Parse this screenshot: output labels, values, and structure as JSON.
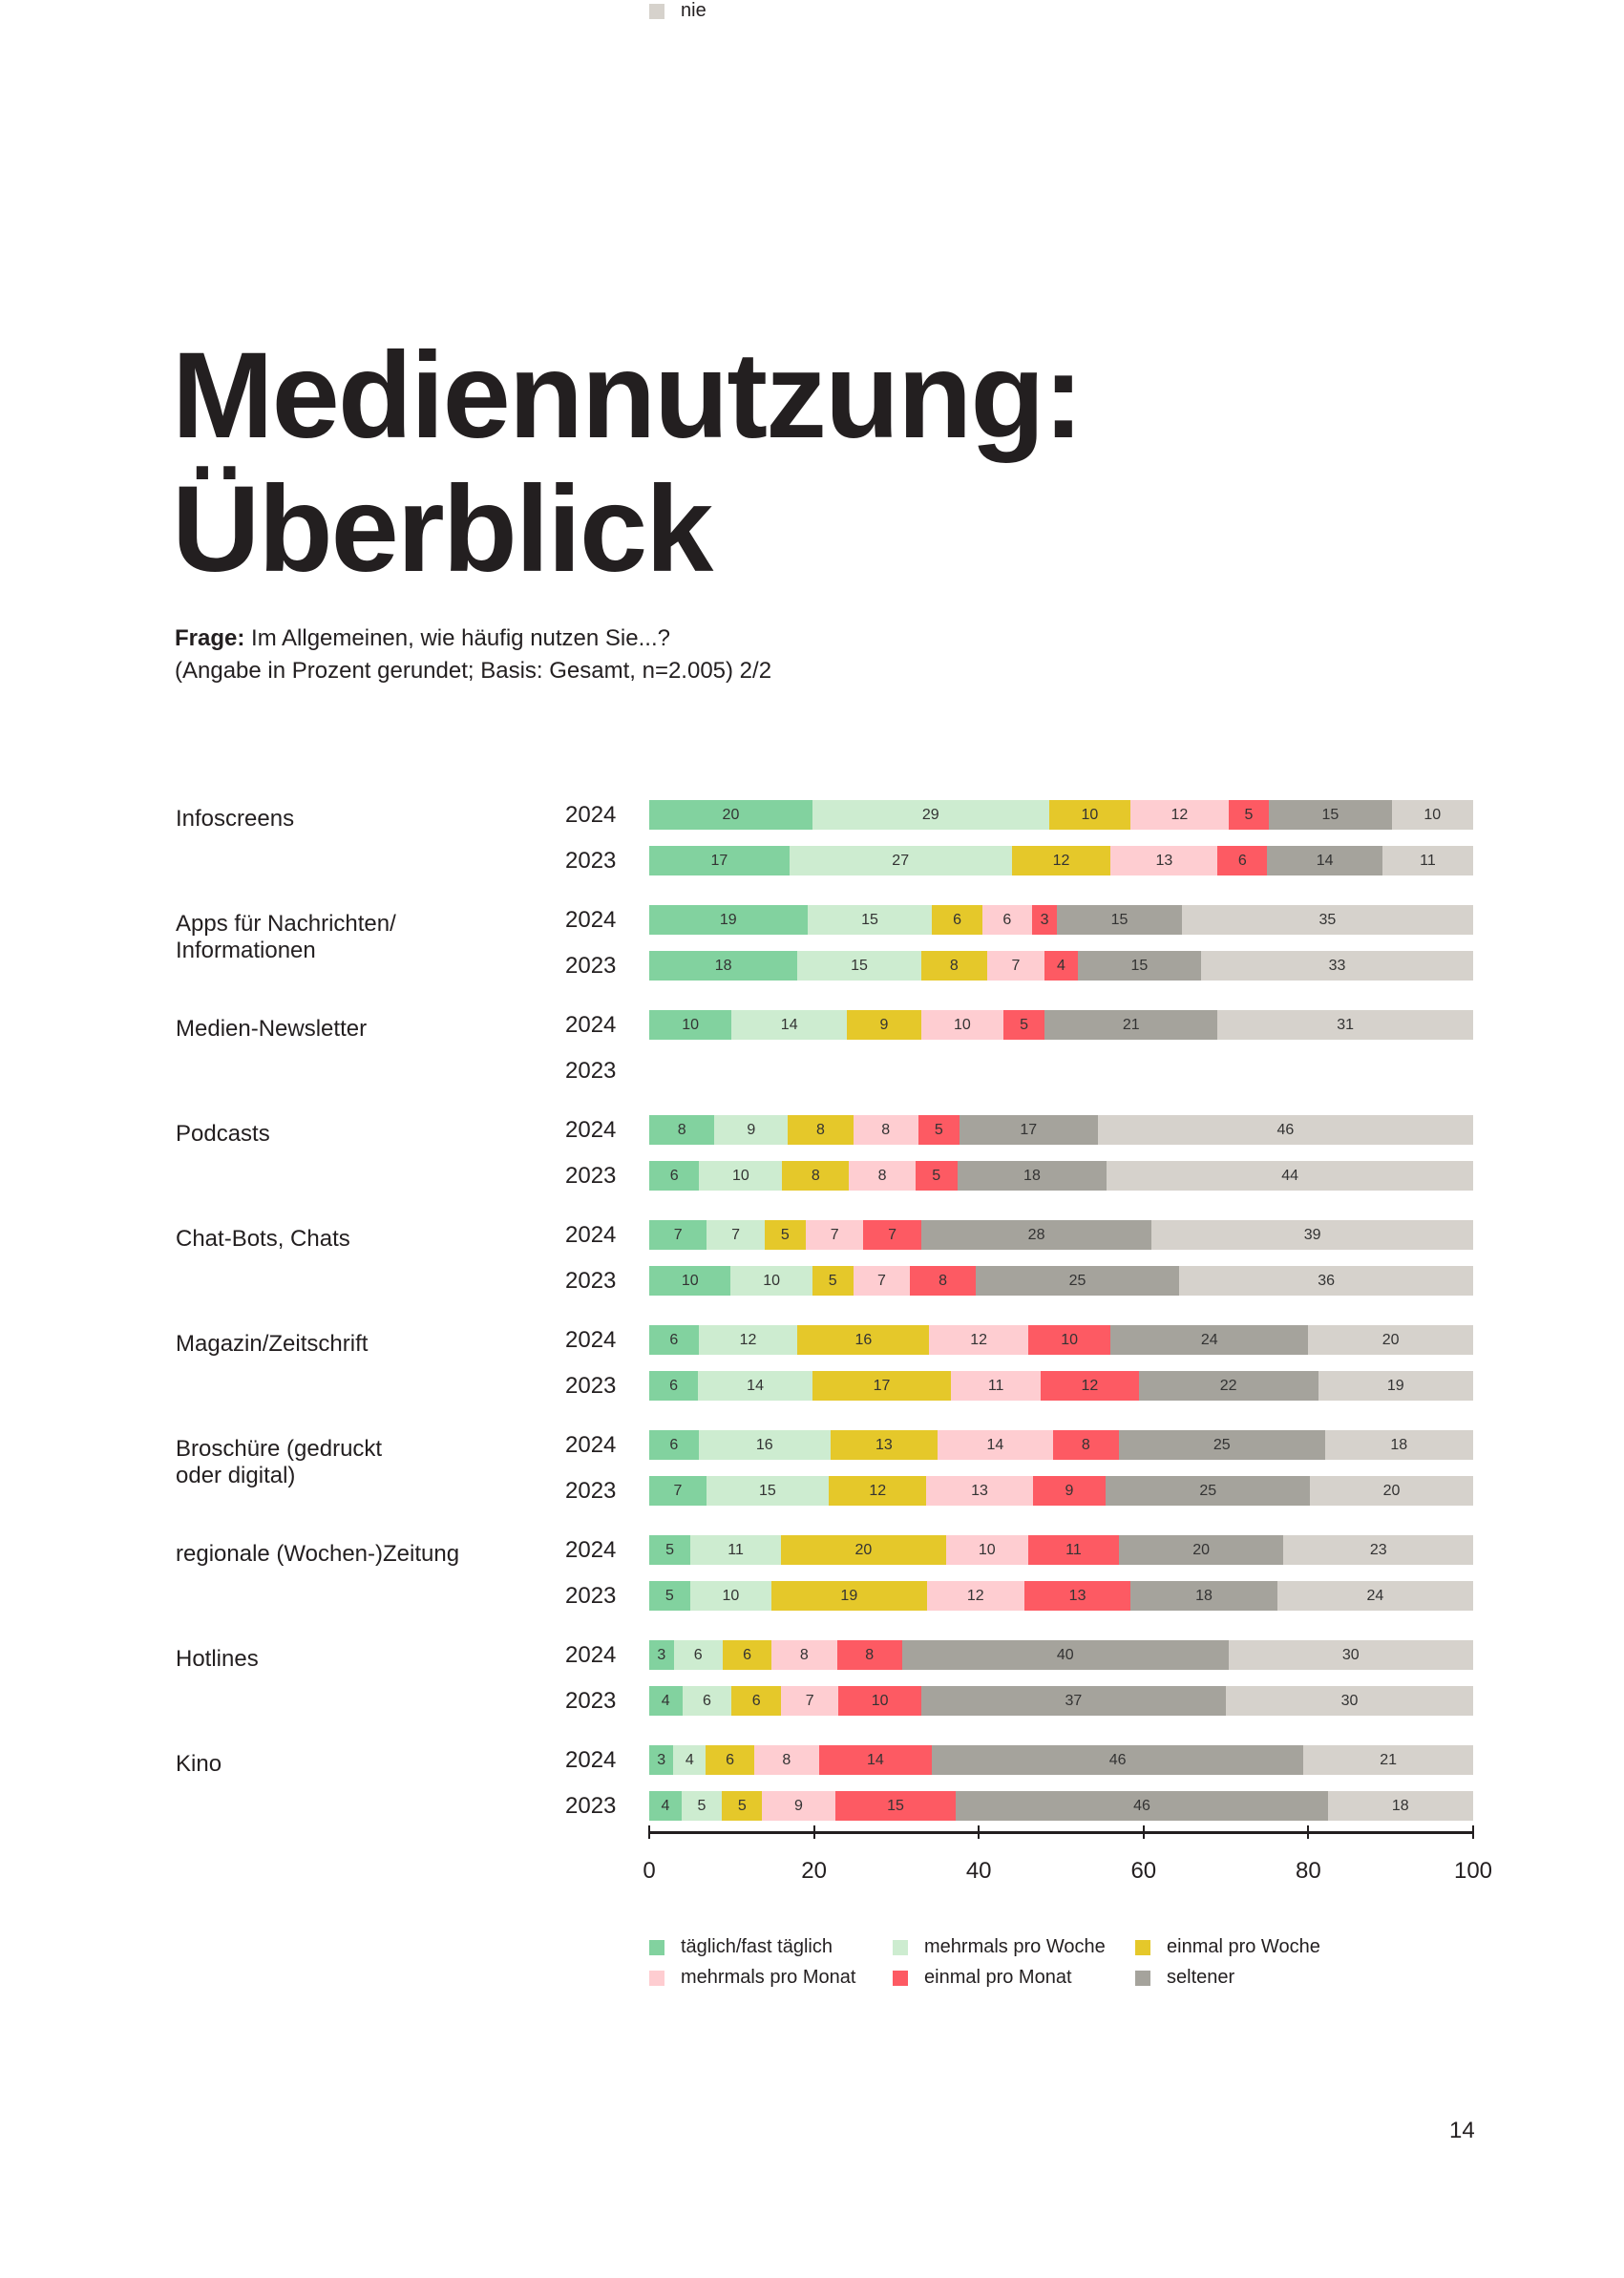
{
  "title_line1": "Mediennutzung:",
  "title_line2": "Überblick",
  "question_label": "Frage:",
  "question_text": " Im Allgemeinen, wie häufig nutzen Sie...?",
  "basis_text": "(Angabe in Prozent gerundet; Basis: Gesamt, n=2.005) 2/2",
  "page_number": "14",
  "chart_data": {
    "type": "bar",
    "stacked": true,
    "orientation": "horizontal",
    "xlim": [
      0,
      100
    ],
    "xticks": [
      "0",
      "20",
      "40",
      "60",
      "80",
      "100"
    ],
    "series_names": [
      "täglich/fast täglich",
      "mehrmals pro Woche",
      "einmal pro Woche",
      "mehrmals pro Monat",
      "einmal pro Monat",
      "seltener",
      "nie"
    ],
    "colors": [
      "#82d29f",
      "#cdecd0",
      "#e5c82a",
      "#fecdd1",
      "#fd5a63",
      "#a5a39c",
      "#d6d2cc"
    ],
    "legend_placement": "bottom",
    "categories": [
      {
        "label": "Infoscreens",
        "rows": [
          {
            "year": "2024",
            "values": [
              20,
              29,
              10,
              12,
              5,
              15,
              10
            ]
          },
          {
            "year": "2023",
            "values": [
              17,
              27,
              12,
              13,
              6,
              14,
              11
            ]
          }
        ]
      },
      {
        "label": "Apps für Nachrichten/\nInformationen",
        "rows": [
          {
            "year": "2024",
            "values": [
              19,
              15,
              6,
              6,
              3,
              15,
              35
            ]
          },
          {
            "year": "2023",
            "values": [
              18,
              15,
              8,
              7,
              4,
              15,
              33
            ]
          }
        ]
      },
      {
        "label": "Medien-Newsletter",
        "rows": [
          {
            "year": "2024",
            "values": [
              10,
              14,
              9,
              10,
              5,
              21,
              31
            ]
          },
          {
            "year": "2023",
            "values": []
          }
        ]
      },
      {
        "label": "Podcasts",
        "rows": [
          {
            "year": "2024",
            "values": [
              8,
              9,
              8,
              8,
              5,
              17,
              46
            ]
          },
          {
            "year": "2023",
            "values": [
              6,
              10,
              8,
              8,
              5,
              18,
              44
            ]
          }
        ]
      },
      {
        "label": "Chat-Bots, Chats",
        "rows": [
          {
            "year": "2024",
            "values": [
              7,
              7,
              5,
              7,
              7,
              28,
              39
            ]
          },
          {
            "year": "2023",
            "values": [
              10,
              10,
              5,
              7,
              8,
              25,
              36
            ]
          }
        ]
      },
      {
        "label": "Magazin/Zeitschrift",
        "rows": [
          {
            "year": "2024",
            "values": [
              6,
              12,
              16,
              12,
              10,
              24,
              20
            ]
          },
          {
            "year": "2023",
            "values": [
              6,
              14,
              17,
              11,
              12,
              22,
              19
            ]
          }
        ]
      },
      {
        "label": "Broschüre (gedruckt\noder digital)",
        "rows": [
          {
            "year": "2024",
            "values": [
              6,
              16,
              13,
              14,
              8,
              25,
              18
            ]
          },
          {
            "year": "2023",
            "values": [
              7,
              15,
              12,
              13,
              9,
              25,
              20
            ]
          }
        ]
      },
      {
        "label": "regionale (Wochen-)Zeitung",
        "rows": [
          {
            "year": "2024",
            "values": [
              5,
              11,
              20,
              10,
              11,
              20,
              23
            ]
          },
          {
            "year": "2023",
            "values": [
              5,
              10,
              19,
              12,
              13,
              18,
              24
            ]
          }
        ]
      },
      {
        "label": "Hotlines",
        "rows": [
          {
            "year": "2024",
            "values": [
              3,
              6,
              6,
              8,
              8,
              40,
              30
            ]
          },
          {
            "year": "2023",
            "values": [
              4,
              6,
              6,
              7,
              10,
              37,
              30
            ]
          }
        ]
      },
      {
        "label": "Kino",
        "rows": [
          {
            "year": "2024",
            "values": [
              3,
              4,
              6,
              8,
              14,
              46,
              21
            ]
          },
          {
            "year": "2023",
            "values": [
              4,
              5,
              5,
              9,
              15,
              46,
              18
            ]
          }
        ]
      }
    ]
  }
}
